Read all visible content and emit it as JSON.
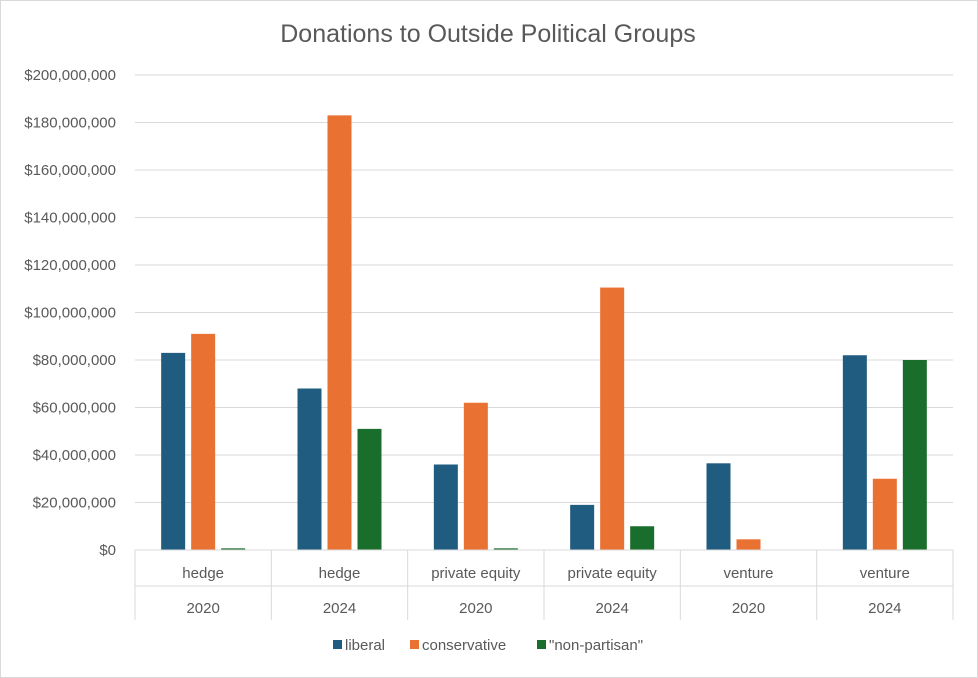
{
  "chart_data": {
    "type": "bar",
    "title": "Donations to Outside Political Groups",
    "xlabel": "",
    "ylabel": "",
    "categories": [
      {
        "group": "hedge",
        "year": "2020"
      },
      {
        "group": "hedge",
        "year": "2024"
      },
      {
        "group": "private equity",
        "year": "2020"
      },
      {
        "group": "private equity",
        "year": "2024"
      },
      {
        "group": "venture",
        "year": "2020"
      },
      {
        "group": "venture",
        "year": "2024"
      }
    ],
    "series": [
      {
        "name": "liberal",
        "color": "#1f5c7f",
        "values": [
          83000000,
          68000000,
          36000000,
          19000000,
          36500000,
          82000000
        ]
      },
      {
        "name": "conservative",
        "color": "#e97132",
        "values": [
          91000000,
          183000000,
          62000000,
          110500000,
          4500000,
          30000000
        ]
      },
      {
        "name": "\"non-partisan\"",
        "color": "#1a6e2b",
        "values": [
          700000,
          51000000,
          700000,
          10000000,
          0,
          80000000
        ]
      }
    ],
    "ylim": [
      0,
      200000000
    ],
    "yticks": [
      0,
      20000000,
      40000000,
      60000000,
      80000000,
      100000000,
      120000000,
      140000000,
      160000000,
      180000000,
      200000000
    ],
    "ytick_labels": [
      "$0",
      "$20,000,000",
      "$40,000,000",
      "$60,000,000",
      "$80,000,000",
      "$100,000,000",
      "$120,000,000",
      "$140,000,000",
      "$160,000,000",
      "$180,000,000",
      "$200,000,000"
    ],
    "grid": true,
    "legend": "bottom"
  }
}
